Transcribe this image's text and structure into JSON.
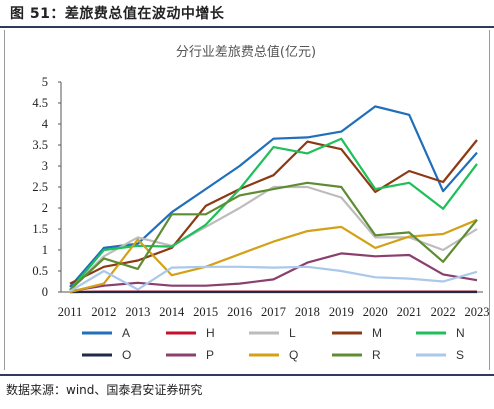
{
  "figure": {
    "label": "图 51：差旅费总值在波动中增长",
    "source": "数据来源：wind、国泰君安证券研究"
  },
  "chart_data": {
    "type": "line",
    "title": "分行业差旅费总值(亿元)",
    "xlabel": "",
    "ylabel": "",
    "ylim": [
      0,
      5
    ],
    "yticks": [
      "0",
      "0.5",
      "1",
      "1.5",
      "2",
      "2.5",
      "3",
      "3.5",
      "4",
      "4.5",
      "5"
    ],
    "x": [
      "2011",
      "2012",
      "2013",
      "2014",
      "2015",
      "2016",
      "2017",
      "2018",
      "2019",
      "2020",
      "2021",
      "2022",
      "2023"
    ],
    "grid": false,
    "legend_position": "bottom",
    "series": [
      {
        "name": "A",
        "color": "#1f6fba",
        "values": [
          0.12,
          1.05,
          1.15,
          1.9,
          2.45,
          3.0,
          3.65,
          3.68,
          3.82,
          4.42,
          4.22,
          2.4,
          3.32
        ]
      },
      {
        "name": "H",
        "color": "#c0122c",
        "values": [
          0.0,
          0.01,
          0.01,
          0.01,
          0.01,
          0.01,
          0.01,
          0.01,
          0.01,
          0.01,
          0.01,
          0.01,
          0.01
        ]
      },
      {
        "name": "L",
        "color": "#bcbcbc",
        "values": [
          0.05,
          0.85,
          1.3,
          1.1,
          1.55,
          2.0,
          2.5,
          2.5,
          2.25,
          1.3,
          1.3,
          1.0,
          1.5
        ]
      },
      {
        "name": "M",
        "color": "#8b3a14",
        "values": [
          0.2,
          0.6,
          0.75,
          1.05,
          2.05,
          2.45,
          2.78,
          3.58,
          3.4,
          2.38,
          2.88,
          2.62,
          3.62
        ]
      },
      {
        "name": "N",
        "color": "#1fbf5a",
        "values": [
          0.05,
          1.0,
          1.1,
          1.08,
          1.6,
          2.45,
          3.45,
          3.3,
          3.65,
          2.45,
          2.6,
          1.98,
          3.05
        ]
      },
      {
        "name": "O",
        "color": "#1f2a44",
        "values": [
          0.0,
          0.0,
          0.0,
          0.0,
          0.0,
          0.0,
          0.0,
          0.0,
          0.0,
          0.0,
          0.0,
          0.0,
          0.0
        ]
      },
      {
        "name": "P",
        "color": "#8a3f6e",
        "values": [
          0.02,
          0.15,
          0.22,
          0.15,
          0.15,
          0.2,
          0.3,
          0.7,
          0.92,
          0.85,
          0.88,
          0.42,
          0.28
        ]
      },
      {
        "name": "Q",
        "color": "#d4a017",
        "values": [
          0.0,
          0.2,
          1.25,
          0.4,
          0.6,
          0.9,
          1.2,
          1.45,
          1.55,
          1.05,
          1.32,
          1.38,
          1.72
        ]
      },
      {
        "name": "R",
        "color": "#5e8c31",
        "values": [
          0.05,
          0.8,
          0.55,
          1.85,
          1.85,
          2.3,
          2.45,
          2.6,
          2.5,
          1.35,
          1.42,
          0.72,
          1.72
        ]
      },
      {
        "name": "S",
        "color": "#a9c8ea",
        "values": [
          0.02,
          0.5,
          0.06,
          0.58,
          0.6,
          0.6,
          0.58,
          0.6,
          0.5,
          0.35,
          0.32,
          0.25,
          0.48
        ]
      }
    ]
  }
}
